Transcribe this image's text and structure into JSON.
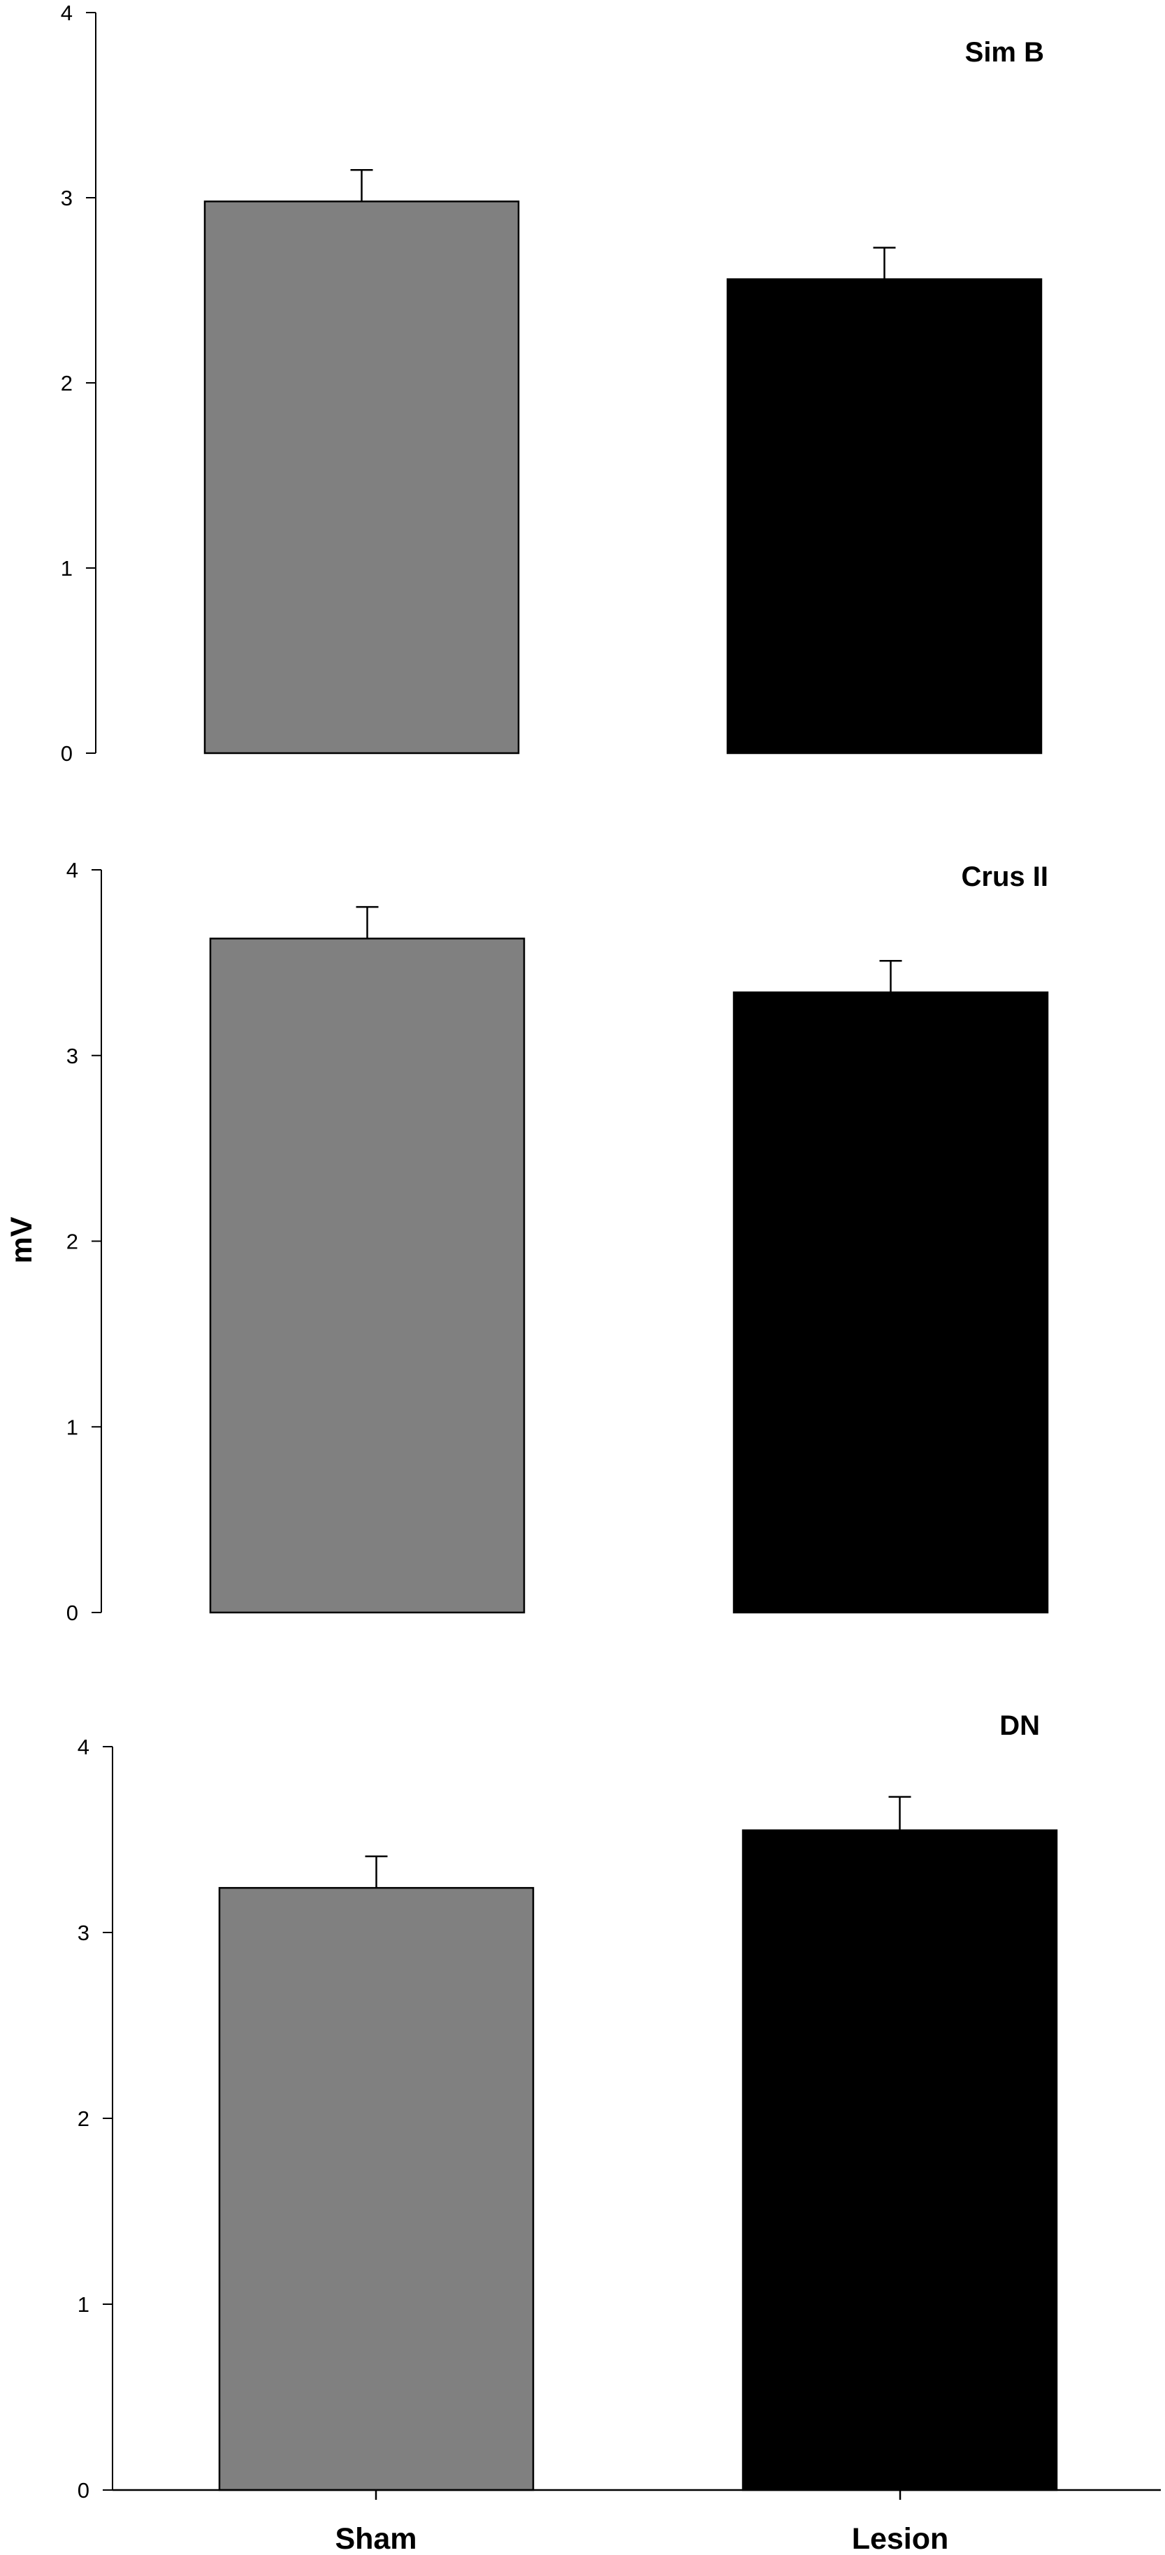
{
  "chart_data": [
    {
      "type": "bar",
      "title": "Sim B",
      "categories": [
        "Sham",
        "Lesion"
      ],
      "values": [
        2.98,
        2.56
      ],
      "errors": [
        0.17,
        0.17
      ],
      "colors": [
        "#808080",
        "#000000"
      ],
      "ylim": [
        0,
        4
      ],
      "yticks": [
        "0",
        "1",
        "2",
        "3",
        "4"
      ]
    },
    {
      "type": "bar",
      "title": "Crus II",
      "categories": [
        "Sham",
        "Lesion"
      ],
      "values": [
        3.63,
        3.34
      ],
      "errors": [
        0.17,
        0.17
      ],
      "colors": [
        "#808080",
        "#000000"
      ],
      "ylim": [
        0,
        4
      ],
      "yticks": [
        "0",
        "1",
        "2",
        "3",
        "4"
      ]
    },
    {
      "type": "bar",
      "title": "DN",
      "categories": [
        "Sham",
        "Lesion"
      ],
      "values": [
        3.24,
        3.55
      ],
      "errors": [
        0.17,
        0.18
      ],
      "colors": [
        "#808080",
        "#000000"
      ],
      "ylim": [
        0,
        4
      ],
      "yticks": [
        "0",
        "1",
        "2",
        "3",
        "4"
      ]
    }
  ],
  "ylabel": "mV",
  "xcategories": [
    "Sham",
    "Lesion"
  ]
}
